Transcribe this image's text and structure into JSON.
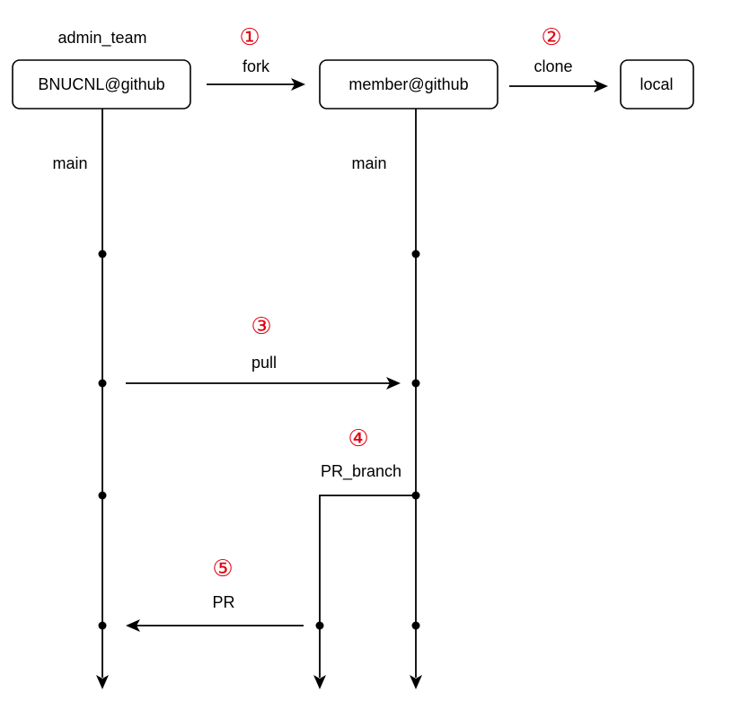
{
  "diagram": {
    "owner_label": "admin_team",
    "nodes": {
      "upstream": "BNUCNL@github",
      "fork": "member@github",
      "local": "local"
    },
    "branches": {
      "upstream_main": "main",
      "fork_main": "main"
    },
    "steps": [
      {
        "number": "①",
        "label": "fork"
      },
      {
        "number": "②",
        "label": "clone"
      },
      {
        "number": "③",
        "label": "pull"
      },
      {
        "number": "④",
        "label": "PR_branch"
      },
      {
        "number": "⑤",
        "label": "PR"
      }
    ],
    "colors": {
      "step_number": "#e0000f",
      "stroke": "#000000"
    }
  }
}
